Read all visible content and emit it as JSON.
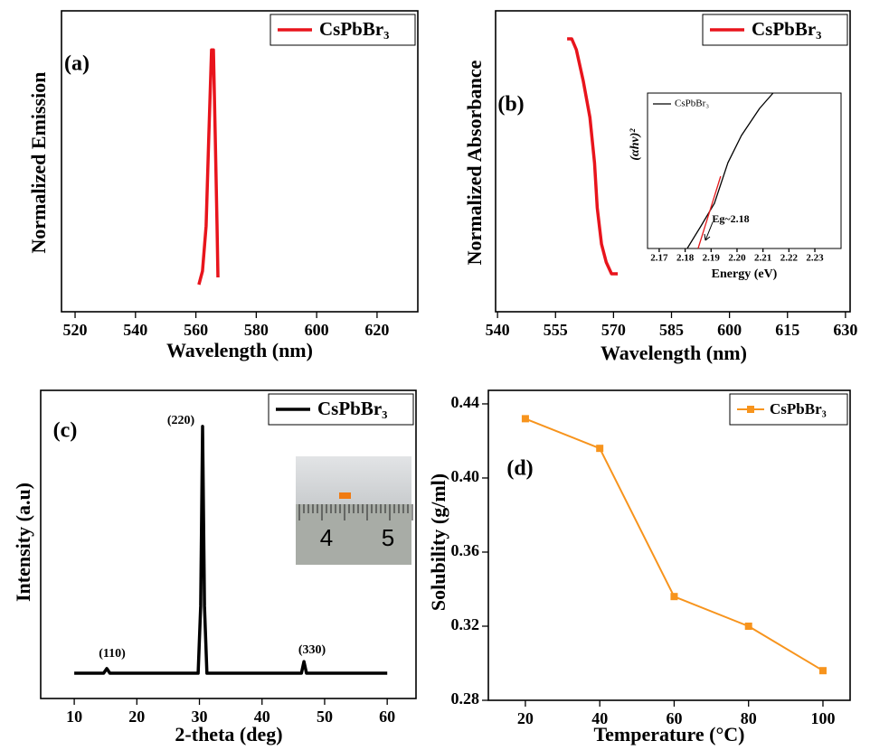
{
  "chart_data": [
    {
      "type": "line",
      "panel_label": "(a)",
      "xlabel": "Wavelength (nm)",
      "ylabel": "Normalized Emission",
      "xlim": [
        515.5,
        633.5
      ],
      "ylim": [
        0,
        1
      ],
      "xticks": [
        520,
        540,
        560,
        580,
        600,
        620
      ],
      "legend": "upper right",
      "series": [
        {
          "name": "CsPbBr₃",
          "color": "#e8141c",
          "x": [
            561.0,
            562.2,
            563.4,
            564.3,
            565.2,
            565.8,
            566.4,
            567.0,
            567.3
          ],
          "values": [
            0.09,
            0.135,
            0.285,
            0.585,
            0.87,
            0.87,
            0.585,
            0.285,
            0.114
          ]
        }
      ]
    },
    {
      "type": "line",
      "panel_label": "(b)",
      "xlabel": "Wavelength (nm)",
      "ylabel": "Normalized Absorbance",
      "xlim": [
        539.5,
        631.2
      ],
      "ylim": [
        0,
        1
      ],
      "xticks": [
        540,
        555,
        570,
        585,
        600,
        615,
        630
      ],
      "legend": "upper right",
      "series": [
        {
          "name": "CsPbBr₃",
          "color": "#e8141c",
          "x": [
            558.0,
            559.2,
            560.4,
            562.2,
            563.9,
            565.1,
            565.8,
            566.9,
            568.1,
            569.5,
            571.1
          ],
          "values": [
            0.907,
            0.907,
            0.871,
            0.766,
            0.646,
            0.495,
            0.345,
            0.225,
            0.165,
            0.126,
            0.126
          ]
        }
      ],
      "inset": {
        "type": "line",
        "xlabel": "Energy (eV)",
        "ylabel": "(αhν)²",
        "xlim": [
          2.1655,
          2.2401
        ],
        "ylim": [
          0,
          1
        ],
        "xticks": [
          2.17,
          2.18,
          2.19,
          {
            "value": 2.2,
            "label": "2.20"
          },
          2.21,
          2.22,
          2.23
        ],
        "legend": "upper left",
        "series": [
          {
            "name": "CsPbBr₃",
            "color": "#000000",
            "x": [
              2.1808,
              2.1861,
              2.1913,
              2.1965,
              2.2017,
              2.2087,
              2.2139
            ],
            "values": [
              0,
              0.145,
              0.291,
              0.552,
              0.727,
              0.901,
              1.0
            ]
          },
          {
            "color": "#e31a1c",
            "x": [
              2.185,
              2.1937
            ],
            "values": [
              0,
              0.465
            ]
          }
        ],
        "annotations": [
          {
            "text": "Eg~2.18",
            "color": "#e31a1c"
          }
        ]
      }
    },
    {
      "type": "line",
      "panel_label": "(c)",
      "xlabel": "2-theta (deg)",
      "ylabel": "Intensity (a.u)",
      "xlim": [
        4.64,
        64.6
      ],
      "ylim": [
        0,
        1
      ],
      "xticks": [
        10,
        20,
        30,
        40,
        50,
        60
      ],
      "legend": "upper right",
      "series": [
        {
          "name": "CsPbBr₃",
          "color": "#000000",
          "x": [
            10,
            14.7,
            15.2,
            15.7,
            29.8,
            30.2,
            30.5,
            30.8,
            31.2,
            46.3,
            46.7,
            47.1,
            60
          ],
          "values": [
            0.082,
            0.082,
            0.097,
            0.082,
            0.082,
            0.3,
            0.883,
            0.3,
            0.082,
            0.082,
            0.12,
            0.082,
            0.082
          ]
        }
      ],
      "annotations": [
        {
          "text": "(110)"
        },
        {
          "text": "(220)"
        },
        {
          "text": "(330)"
        }
      ],
      "photo_text": [
        "4",
        "5"
      ]
    },
    {
      "type": "line",
      "panel_label": "(d)",
      "xlabel": "Temperature (°C)",
      "ylabel": "Solubility (g/ml)",
      "xlim": [
        10.05,
        107.3
      ],
      "ylim": [
        0.28,
        0.4473
      ],
      "xticks": [
        20,
        40,
        60,
        80,
        100
      ],
      "yticks": [
        0.28,
        0.32,
        0.36,
        {
          "value": 0.4,
          "label": "0.40"
        },
        0.44
      ],
      "legend": "upper right",
      "series": [
        {
          "name": "CsPbBr₃",
          "color": "#f7941d",
          "marker": "square",
          "x": [
            20,
            40,
            60,
            80,
            100
          ],
          "values": [
            0.432,
            0.416,
            0.336,
            0.32,
            0.296
          ]
        }
      ]
    }
  ]
}
